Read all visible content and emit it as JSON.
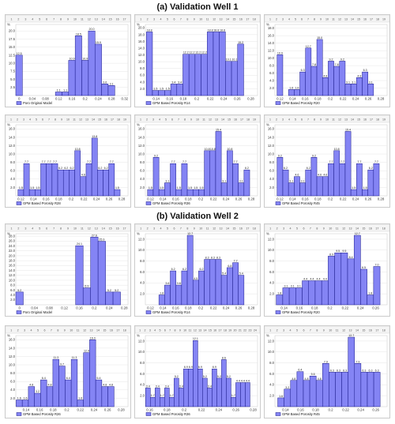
{
  "section1_title": "(a) Validation Well 1",
  "section2_title": "(b) Validation Well 2",
  "chart_data": [
    {
      "type": "bar",
      "section": 1,
      "legend": "Poro Original Model",
      "percent_symbol": "%",
      "categories_count": 17,
      "x_ticks": [
        "0",
        "0.04",
        "0.08",
        "0.12",
        "0.16",
        "0.2",
        "0.24",
        "0.28",
        "0.32"
      ],
      "xlim": [
        -0.01,
        0.33
      ],
      "bar_width": 0.02,
      "y_ticks": [
        "2.5",
        "5.0",
        "7.5",
        "10.0",
        "12.5",
        "15.0",
        "17.5",
        "20.0"
      ],
      "ylim": [
        0,
        22
      ],
      "x": [
        0,
        0.12,
        0.14,
        0.16,
        0.18,
        0.2,
        0.22,
        0.24,
        0.26,
        0.28
      ],
      "values": [
        12.5,
        1.1,
        1.1,
        10.9,
        18.5,
        10.9,
        20.0,
        15.9,
        3.6,
        3.1
      ],
      "labels": [
        "12.5",
        "1.1",
        "1.1",
        "10.9",
        "18.5",
        "10.9",
        "20.0",
        "15.9",
        "3.6",
        "3.1"
      ]
    },
    {
      "type": "bar",
      "section": 1,
      "legend": "GPM Based Porosity R14",
      "percent_symbol": "%",
      "categories_count": 18,
      "x_ticks": [
        "0.14",
        "0.16",
        "0.18",
        "0.2",
        "0.22",
        "0.24",
        "0.26",
        "0.28"
      ],
      "xlim": [
        0.124,
        0.29
      ],
      "bar_width": 0.009,
      "y_ticks": [
        "2.0",
        "4.0",
        "6.0",
        "8.0",
        "10.0",
        "12.0",
        "14.0",
        "16.0",
        "18.0",
        "20.0"
      ],
      "ylim": [
        0,
        21
      ],
      "x": [
        0.13,
        0.139,
        0.148,
        0.157,
        0.166,
        0.175,
        0.184,
        0.193,
        0.202,
        0.211,
        0.22,
        0.229,
        0.238,
        0.247,
        0.256,
        0.265
      ],
      "values": [
        18.8,
        1.5,
        1.5,
        1.5,
        3.4,
        3.4,
        12.2,
        12.2,
        12.2,
        12.2,
        18.8,
        18.8,
        18.8,
        10.1,
        10.1,
        15.2
      ],
      "labels": [
        "18.8",
        "1.5",
        "1.5",
        "1.5",
        "3.4",
        "3.4",
        "12.2",
        "12.2",
        "12.2",
        "12.2",
        "18.8",
        "18.8",
        "18.8",
        "10.1",
        "10.1",
        "15.2"
      ]
    },
    {
      "type": "bar",
      "section": 1,
      "legend": "GPM Based Porosity R20",
      "percent_symbol": "%",
      "categories_count": 19,
      "x_ticks": [
        "0.12",
        "0.14",
        "0.16",
        "0.18",
        "0.2",
        "0.22",
        "0.24",
        "0.26",
        "0.28"
      ],
      "xlim": [
        0.112,
        0.29
      ],
      "bar_width": 0.009,
      "y_ticks": [
        "2.0",
        "4.0",
        "6.0",
        "8.0",
        "10.0",
        "12.0",
        "14.0",
        "16.0",
        "18.0"
      ],
      "ylim": [
        0,
        19
      ],
      "x": [
        0.12,
        0.138,
        0.147,
        0.156,
        0.165,
        0.174,
        0.183,
        0.192,
        0.201,
        0.21,
        0.219,
        0.228,
        0.237,
        0.246,
        0.255,
        0.264
      ],
      "values": [
        10.9,
        1.6,
        1.6,
        6.3,
        12.7,
        7.8,
        15.0,
        4.8,
        9.2,
        7.8,
        9.2,
        3.1,
        3.1,
        4.8,
        6.3,
        3.1
      ],
      "labels": [
        "10.9",
        "1.6",
        "1.6",
        "6.3",
        "12.7",
        "7.8",
        "15.0",
        "4.8",
        "9.2",
        "7.8",
        "9.2",
        "3.1",
        "3.1",
        "4.8",
        "6.3",
        "3.1"
      ]
    },
    {
      "type": "bar",
      "section": 1,
      "legend": "GPM Based Porosity R28",
      "percent_symbol": "%",
      "categories_count": 19,
      "x_ticks": [
        "0.12",
        "0.14",
        "0.16",
        "0.18",
        "0.2",
        "0.22",
        "0.24",
        "0.26",
        "0.28"
      ],
      "xlim": [
        0.112,
        0.29
      ],
      "bar_width": 0.009,
      "y_ticks": [
        "2.0",
        "4.0",
        "6.0",
        "8.0",
        "10.0",
        "12.0",
        "14.0",
        "16.0"
      ],
      "ylim": [
        0,
        17
      ],
      "x": [
        0.12,
        0.129,
        0.138,
        0.147,
        0.156,
        0.165,
        0.174,
        0.183,
        0.192,
        0.201,
        0.21,
        0.219,
        0.228,
        0.237,
        0.246,
        0.255,
        0.264,
        0.273
      ],
      "values": [
        1.5,
        7.7,
        1.5,
        1.5,
        7.7,
        7.7,
        7.7,
        6.2,
        6.2,
        6.2,
        10.8,
        4.6,
        7.7,
        13.8,
        6.2,
        6.2,
        7.7,
        1.5
      ],
      "labels": [
        "1.5",
        "7.7",
        "1.5",
        "1.5",
        "7.7",
        "7.7",
        "7.7",
        "6.2",
        "6.2",
        "6.2",
        "10.8",
        "4.6",
        "7.7",
        "13.8",
        "6.2",
        "6.2",
        "7.7",
        "1.5"
      ]
    },
    {
      "type": "bar",
      "section": 1,
      "legend": "GPM Based Porosity R36",
      "percent_symbol": "%",
      "categories_count": 19,
      "x_ticks": [
        "0.12",
        "0.14",
        "0.16",
        "0.18",
        "0.2",
        "0.22",
        "0.24",
        "0.26",
        "0.28"
      ],
      "xlim": [
        0.112,
        0.29
      ],
      "bar_width": 0.009,
      "y_ticks": [
        "2.0",
        "4.0",
        "6.0",
        "8.0",
        "10.0",
        "12.0",
        "14.0",
        "16.0"
      ],
      "ylim": [
        0,
        17
      ],
      "x": [
        0.12,
        0.129,
        0.138,
        0.147,
        0.156,
        0.165,
        0.174,
        0.183,
        0.192,
        0.201,
        0.21,
        0.219,
        0.228,
        0.237,
        0.246,
        0.255,
        0.264,
        0.273
      ],
      "values": [
        1.5,
        9.2,
        1.5,
        3.1,
        7.7,
        1.5,
        7.7,
        1.5,
        1.5,
        1.5,
        10.8,
        10.8,
        15.4,
        3.1,
        10.8,
        7.7,
        3.1,
        6.2
      ],
      "labels": [
        "1.5",
        "9.2",
        "1.5",
        "3.1",
        "7.7",
        "1.5",
        "7.7",
        "1.5",
        "1.5",
        "1.5",
        "10.8",
        "10.8",
        "15.4",
        "3.1",
        "10.8",
        "7.7",
        "3.1",
        "6.2"
      ]
    },
    {
      "type": "bar",
      "section": 1,
      "legend": "GPM Based Porosity R45",
      "percent_symbol": "%",
      "categories_count": 19,
      "x_ticks": [
        "0.12",
        "0.14",
        "0.16",
        "0.18",
        "0.2",
        "0.22",
        "0.24",
        "0.26",
        "0.28"
      ],
      "xlim": [
        0.112,
        0.29
      ],
      "bar_width": 0.009,
      "y_ticks": [
        "2.0",
        "4.0",
        "6.0",
        "8.0",
        "10.0",
        "12.0",
        "14.0",
        "16.0"
      ],
      "ylim": [
        0,
        17
      ],
      "x": [
        0.12,
        0.129,
        0.138,
        0.147,
        0.156,
        0.165,
        0.174,
        0.183,
        0.192,
        0.201,
        0.21,
        0.219,
        0.228,
        0.237,
        0.246,
        0.255,
        0.264,
        0.273
      ],
      "values": [
        9.2,
        6.2,
        3.1,
        4.6,
        3.1,
        6.2,
        9.2,
        4.6,
        4.6,
        7.7,
        10.8,
        7.7,
        15.4,
        1.5,
        7.7,
        1.5,
        6.2,
        7.7
      ],
      "labels": [
        "9.2",
        "6.2",
        "3.1",
        "4.6",
        "3.1",
        "6.2",
        "9.2",
        "4.6",
        "4.6",
        "7.7",
        "10.8",
        "7.7",
        "15.4",
        "1.5",
        "7.7",
        "1.5",
        "6.2",
        "7.7"
      ]
    },
    {
      "type": "bar",
      "section": 2,
      "legend": "Poro Original Model",
      "percent_symbol": "%",
      "categories_count": 17,
      "x_ticks": [
        "0",
        "0.04",
        "0.08",
        "0.12",
        "0.16",
        "0.2",
        "0.24",
        "0.28"
      ],
      "xlim": [
        -0.01,
        0.29
      ],
      "bar_width": 0.02,
      "y_ticks": [
        "2.0",
        "4.0",
        "6.0",
        "8.0",
        "10.0",
        "12.0",
        "14.0",
        "16.0",
        "18.0",
        "20.0",
        "22.0",
        "24.0",
        "26.0",
        "28.0"
      ],
      "ylim": [
        0,
        29
      ],
      "x": [
        0,
        0.16,
        0.18,
        0.2,
        0.22,
        0.24,
        0.26
      ],
      "values": [
        5.2,
        24.1,
        6.9,
        27.6,
        25.9,
        5.2,
        5.2
      ],
      "labels": [
        "5.2",
        "24.1",
        "6.9",
        "27.6",
        "25.9",
        "5.2",
        "5.2"
      ]
    },
    {
      "type": "bar",
      "section": 2,
      "legend": "GPM Based Porosity R14",
      "percent_symbol": "%",
      "categories_count": 18,
      "x_ticks": [
        "0.12",
        "0.14",
        "0.16",
        "0.18",
        "0.2",
        "0.22",
        "0.24",
        "0.26",
        "0.28"
      ],
      "xlim": [
        0.112,
        0.29
      ],
      "bar_width": 0.009,
      "y_ticks": [
        "2.0",
        "4.0",
        "6.0",
        "8.0",
        "10.0",
        "12.0"
      ],
      "ylim": [
        0,
        13
      ],
      "x": [
        0.138,
        0.147,
        0.156,
        0.165,
        0.174,
        0.183,
        0.192,
        0.201,
        0.21,
        0.219,
        0.228,
        0.237,
        0.246,
        0.255,
        0.264
      ],
      "values": [
        1.8,
        3.6,
        6.2,
        3.6,
        6.2,
        12.7,
        4.5,
        6.2,
        8.3,
        8.3,
        8.3,
        5.4,
        6.8,
        7.7,
        5.4
      ],
      "labels": [
        "1.8",
        "3.6",
        "6.2",
        "3.6",
        "6.2",
        "12.7",
        "4.5",
        "6.2",
        "8.3",
        "8.3",
        "8.3",
        "5.4",
        "6.8",
        "7.7",
        "5.4"
      ]
    },
    {
      "type": "bar",
      "section": 2,
      "legend": "GPM Based Porosity R20",
      "percent_symbol": "%",
      "categories_count": 18,
      "x_ticks": [
        "0.14",
        "0.16",
        "0.18",
        "0.2",
        "0.22",
        "0.24",
        "0.26"
      ],
      "xlim": [
        0.128,
        0.275
      ],
      "bar_width": 0.0085,
      "y_ticks": [
        "2.0",
        "4.0",
        "6.0",
        "8.0",
        "10.0",
        "12.0"
      ],
      "ylim": [
        0,
        13
      ],
      "x": [
        0.134,
        0.1425,
        0.151,
        0.1595,
        0.168,
        0.1765,
        0.185,
        0.1935,
        0.202,
        0.2105,
        0.219,
        0.2275,
        0.236,
        0.2445,
        0.253,
        0.2615
      ],
      "values": [
        1.8,
        3.1,
        3.1,
        3.1,
        4.4,
        4.4,
        4.4,
        4.4,
        8.9,
        9.5,
        9.5,
        8.4,
        12.7,
        6.5,
        1.8,
        7.0
      ],
      "labels": [
        "1.8",
        "3.1",
        "3.1",
        "3.1",
        "4.4",
        "4.4",
        "4.4",
        "4.4",
        "8.9",
        "9.5",
        "9.5",
        "8.4",
        "12.7",
        "6.5",
        "1.8",
        "7.0"
      ]
    },
    {
      "type": "bar",
      "section": 2,
      "legend": "GPM Based Porosity R26",
      "percent_symbol": "%",
      "categories_count": 18,
      "x_ticks": [
        "0.14",
        "0.16",
        "0.18",
        "0.2",
        "0.22",
        "0.24",
        "0.26",
        "0.28"
      ],
      "xlim": [
        0.125,
        0.29
      ],
      "bar_width": 0.009,
      "y_ticks": [
        "2.0",
        "4.0",
        "6.0",
        "8.0",
        "10.0",
        "12.0",
        "14.0",
        "16.0"
      ],
      "ylim": [
        0,
        17
      ],
      "x": [
        0.13,
        0.139,
        0.148,
        0.157,
        0.166,
        0.175,
        0.184,
        0.193,
        0.202,
        0.211,
        0.22,
        0.229,
        0.238,
        0.247,
        0.256,
        0.265
      ],
      "values": [
        1.6,
        1.6,
        4.8,
        3.2,
        6.4,
        4.8,
        11.3,
        9.7,
        6.4,
        11.3,
        1.6,
        12.9,
        16.0,
        6.4,
        4.8,
        4.8
      ],
      "labels": [
        "1.6",
        "1.6",
        "4.8",
        "3.2",
        "6.4",
        "4.8",
        "11.3",
        "9.7",
        "6.4",
        "11.3",
        "1.6",
        "12.9",
        "16.0",
        "6.4",
        "4.8",
        "4.8"
      ]
    },
    {
      "type": "bar",
      "section": 2,
      "legend": "GPM Based Porosity R36",
      "percent_symbol": "%",
      "categories_count": 24,
      "x_ticks": [
        "0.16",
        "0.18",
        "0.2",
        "0.22",
        "0.24",
        "0.26",
        "0.28"
      ],
      "xlim": [
        0.155,
        0.285
      ],
      "bar_width": 0.0055,
      "y_ticks": [
        "2.0",
        "4.0",
        "6.0",
        "8.0",
        "10.0",
        "12.0"
      ],
      "ylim": [
        0,
        13
      ],
      "x": [
        0.158,
        0.1635,
        0.169,
        0.1745,
        0.18,
        0.1855,
        0.191,
        0.1965,
        0.202,
        0.2075,
        0.213,
        0.2185,
        0.224,
        0.2295,
        0.235,
        0.2405,
        0.246,
        0.2515,
        0.257,
        0.2625,
        0.268,
        0.2735
      ],
      "values": [
        3.4,
        1.7,
        3.4,
        1.7,
        3.4,
        1.7,
        5.2,
        3.4,
        6.9,
        6.9,
        12.1,
        6.9,
        5.2,
        3.4,
        6.9,
        5.2,
        8.6,
        5.2,
        1.7,
        4.4,
        4.4,
        4.4
      ],
      "labels": [
        "3.4",
        "1.7",
        "3.4",
        "1.7",
        "3.4",
        "1.7",
        "5.2",
        "3.4",
        "6.9",
        "6.9",
        "12.1",
        "6.9",
        "5.2",
        "3.4",
        "6.9",
        "5.2",
        "8.6",
        "5.2",
        "1.7",
        "4.4",
        "4.4",
        "4.4"
      ]
    },
    {
      "type": "bar",
      "section": 2,
      "legend": "GPM Based Porosity R45",
      "percent_symbol": "%",
      "categories_count": 18,
      "x_ticks": [
        "0.14",
        "0.16",
        "0.18",
        "0.2",
        "0.22",
        "0.24",
        "0.26"
      ],
      "xlim": [
        0.126,
        0.275
      ],
      "bar_width": 0.0085,
      "y_ticks": [
        "2.0",
        "4.0",
        "6.0",
        "8.0",
        "10.0",
        "12.0"
      ],
      "ylim": [
        0,
        13
      ],
      "x": [
        0.134,
        0.1425,
        0.151,
        0.1595,
        0.168,
        0.1765,
        0.185,
        0.1935,
        0.202,
        0.2105,
        0.219,
        0.2275,
        0.236,
        0.2445,
        0.253,
        0.2615
      ],
      "values": [
        1.6,
        3.2,
        4.8,
        6.4,
        4.8,
        5.6,
        4.8,
        7.9,
        6.3,
        6.3,
        6.3,
        12.7,
        7.9,
        6.3,
        6.3,
        6.3
      ],
      "labels": [
        "1.6",
        "3.2",
        "4.8",
        "6.4",
        "4.8",
        "5.6",
        "4.8",
        "7.9",
        "6.3",
        "6.3",
        "6.3",
        "12.7",
        "7.9",
        "6.3",
        "6.3",
        "6.3"
      ]
    }
  ]
}
